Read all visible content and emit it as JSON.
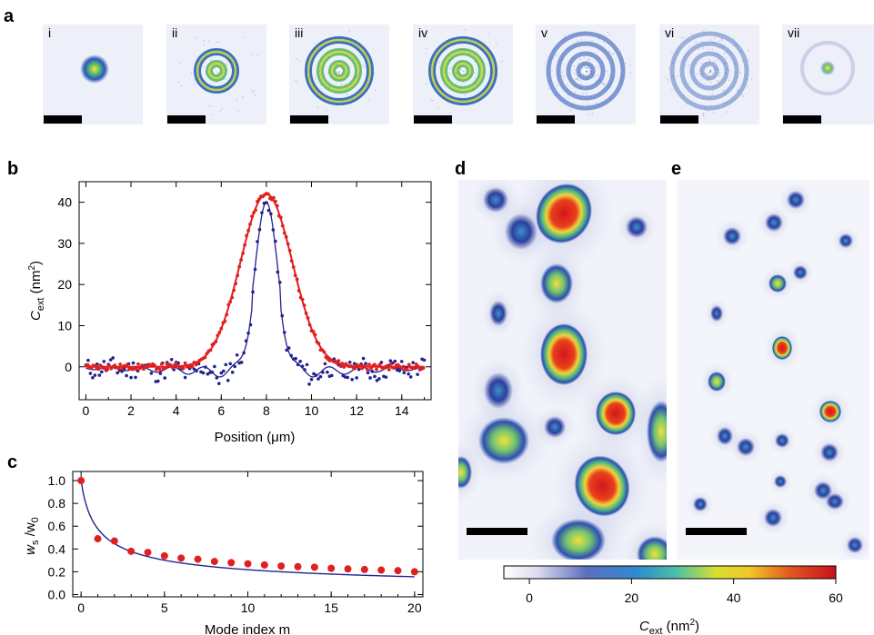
{
  "panel_labels": {
    "a": "a",
    "b": "b",
    "c": "c",
    "d": "d",
    "e": "e"
  },
  "mode_panels": [
    "i",
    "ii",
    "iii",
    "iv",
    "v",
    "vi",
    "vii"
  ],
  "colors": {
    "red": "#e02020",
    "blue": "#23238f"
  },
  "chart_data": [
    {
      "id": "b",
      "type": "scatter",
      "title": "",
      "xlabel": "Position (μm)",
      "ylabel_main": "C",
      "ylabel_sub": "ext",
      "ylabel_units": " (nm",
      "ylabel_sup": "2",
      "ylabel_close": ")",
      "xlim": [
        -0.3,
        15.3
      ],
      "ylim": [
        -8,
        45
      ],
      "xticks": [
        0,
        2,
        4,
        6,
        8,
        10,
        12,
        14
      ],
      "yticks": [
        0,
        10,
        20,
        30,
        40
      ],
      "series": [
        {
          "color": "#e02020",
          "model": {
            "type": "gaussian",
            "amplitude": 42,
            "center": 8.0,
            "sigma": 1.15
          }
        },
        {
          "color": "#23238f",
          "model": {
            "type": "oscillating-peak",
            "amplitude": 40,
            "center": 8.0,
            "width": 0.62,
            "side_lobe_depth": -4
          }
        }
      ]
    },
    {
      "id": "c",
      "type": "scatter",
      "title": "",
      "xlabel": "Mode index m",
      "ylabel_main": "w",
      "ylabel_sub": "s",
      "ylabel_mid": " /w",
      "ylabel_sub2": "0",
      "xlim": [
        -0.5,
        20.5
      ],
      "ylim": [
        -0.02,
        1.08
      ],
      "xticks": [
        0,
        5,
        10,
        15,
        20
      ],
      "yticks": [
        0.0,
        0.2,
        0.4,
        0.6,
        0.8,
        1.0
      ],
      "series": [
        {
          "color": "#e02020",
          "x": [
            0,
            1,
            2,
            3,
            4,
            5,
            6,
            7,
            8,
            9,
            10,
            11,
            12,
            13,
            14,
            15,
            16,
            17,
            18,
            19,
            20
          ],
          "y": [
            1.0,
            0.49,
            0.47,
            0.38,
            0.37,
            0.34,
            0.32,
            0.31,
            0.29,
            0.28,
            0.27,
            0.26,
            0.25,
            0.245,
            0.24,
            0.23,
            0.225,
            0.22,
            0.215,
            0.21,
            0.2
          ]
        },
        {
          "color": "#23238f",
          "model": {
            "type": "power-law",
            "form": "1/sqrt(2m+1)"
          }
        }
      ]
    },
    {
      "id": "colorbar",
      "type": "heatmap",
      "xlabel_main": "C",
      "xlabel_sub": "ext",
      "xlabel_units": " (nm",
      "xlabel_sup": "2",
      "xlabel_close": ")",
      "range": [
        -5,
        60
      ],
      "ticks": [
        0,
        20,
        40,
        60
      ]
    }
  ]
}
